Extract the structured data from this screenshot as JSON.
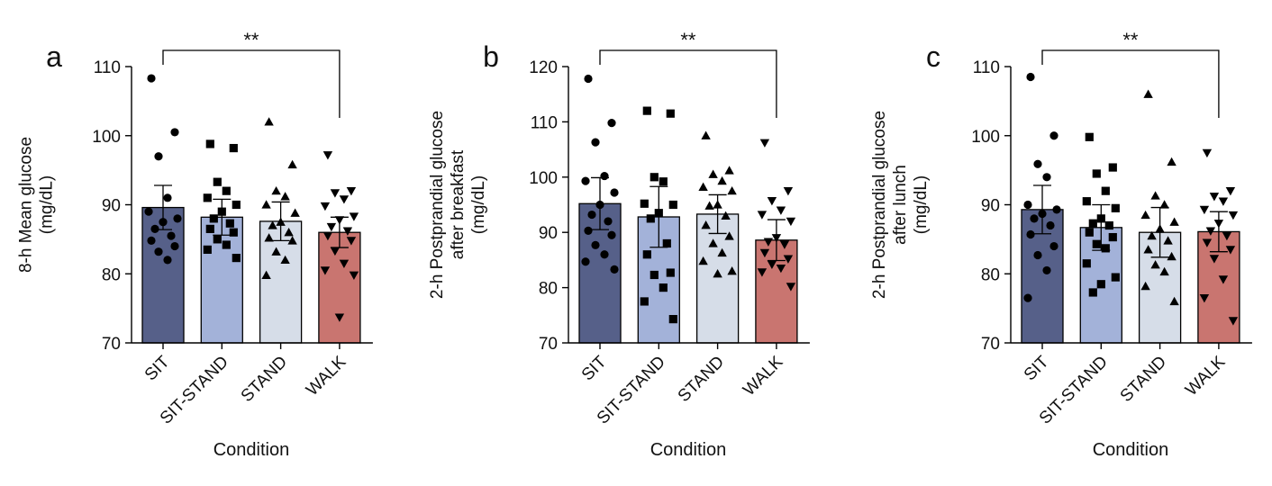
{
  "figure": {
    "xlabel": "Condition",
    "categories": [
      "SIT",
      "SIT-STAND",
      "STAND",
      "WALK"
    ],
    "colors": [
      "#566089",
      "#a3b2d9",
      "#d6dde8",
      "#c97570"
    ],
    "marker_shapes": [
      "circle",
      "square",
      "triangle-up",
      "triangle-down"
    ]
  },
  "chart_data": [
    {
      "type": "bar",
      "panel_letter": "a",
      "ylabel_lines": [
        "8-h Mean glucose",
        "(mg/dL)"
      ],
      "xlabel": "Condition",
      "categories": [
        "SIT",
        "SIT-STAND",
        "STAND",
        "WALK"
      ],
      "values": [
        89.6,
        88.2,
        87.6,
        86.0
      ],
      "error": [
        3.2,
        2.6,
        2.8,
        2.2
      ],
      "ylim": [
        70,
        110
      ],
      "yticks": [
        70,
        80,
        90,
        100,
        110
      ],
      "significance": {
        "label": "**",
        "from": "SIT",
        "to": "WALK"
      },
      "points": [
        [
          108.3,
          100.5,
          97.0,
          91.0,
          89.0,
          88.0,
          87.5,
          86.5,
          85.5,
          84.8,
          84.0,
          83.2,
          82.0
        ],
        [
          98.8,
          98.2,
          93.3,
          92.0,
          91.0,
          90.0,
          89.0,
          88.0,
          87.3,
          86.5,
          86.0,
          85.0,
          84.2,
          83.5,
          82.3
        ],
        [
          102.0,
          95.8,
          92.0,
          91.2,
          90.0,
          88.8,
          87.5,
          87.0,
          86.0,
          85.2,
          84.8,
          83.2,
          82.0,
          79.8
        ],
        [
          97.2,
          92.0,
          91.7,
          90.8,
          89.8,
          88.3,
          87.8,
          86.8,
          86.2,
          85.5,
          84.8,
          83.3,
          81.5,
          80.5,
          79.8,
          73.7
        ]
      ]
    },
    {
      "type": "bar",
      "panel_letter": "b",
      "ylabel_lines": [
        "2-h Postprandial glucose",
        "after breakfast",
        "(mg/dL)"
      ],
      "xlabel": "Condition",
      "categories": [
        "SIT",
        "SIT-STAND",
        "STAND",
        "WALK"
      ],
      "values": [
        95.2,
        92.8,
        93.3,
        88.6
      ],
      "error": [
        4.7,
        5.5,
        3.5,
        3.7
      ],
      "ylim": [
        70,
        120
      ],
      "yticks": [
        70,
        80,
        90,
        100,
        110,
        120
      ],
      "significance": {
        "label": "**",
        "from": "SIT",
        "to": "WALK"
      },
      "points": [
        [
          117.8,
          109.8,
          106.3,
          100.2,
          99.3,
          97.2,
          95.0,
          93.2,
          92.0,
          90.3,
          89.5,
          87.7,
          86.0,
          84.7,
          83.3
        ],
        [
          112.0,
          111.5,
          100.0,
          99.2,
          95.2,
          95.0,
          93.5,
          92.5,
          88.0,
          86.0,
          82.7,
          82.3,
          80.0,
          77.5,
          74.3
        ],
        [
          107.5,
          101.2,
          100.5,
          99.3,
          98.2,
          97.5,
          95.0,
          94.8,
          93.0,
          91.3,
          89.3,
          88.0,
          86.3,
          84.8,
          83.0,
          82.5
        ],
        [
          106.2,
          97.5,
          95.7,
          94.0,
          93.2,
          92.0,
          89.0,
          88.3,
          87.8,
          86.3,
          85.2,
          84.2,
          83.5,
          82.8,
          80.2
        ]
      ]
    },
    {
      "type": "bar",
      "panel_letter": "c",
      "ylabel_lines": [
        "2-h Postprandial glucose",
        "after lunch",
        "(mg/dL)"
      ],
      "xlabel": "Condition",
      "categories": [
        "SIT",
        "SIT-STAND",
        "STAND",
        "WALK"
      ],
      "values": [
        89.3,
        86.7,
        86.0,
        86.1
      ],
      "error": [
        3.5,
        3.3,
        3.6,
        2.9
      ],
      "ylim": [
        70,
        110
      ],
      "yticks": [
        70,
        80,
        90,
        100,
        110
      ],
      "significance": {
        "label": "**",
        "from": "SIT",
        "to": "WALK"
      },
      "points": [
        [
          108.5,
          100.0,
          95.9,
          94.0,
          90.0,
          89.3,
          88.7,
          88.0,
          87.0,
          85.7,
          84.0,
          82.7,
          80.5,
          76.5
        ],
        [
          99.8,
          95.4,
          94.5,
          92.0,
          90.5,
          89.5,
          88.0,
          87.3,
          87.0,
          86.0,
          85.3,
          84.3,
          83.7,
          81.5,
          79.5,
          78.5,
          77.3
        ],
        [
          106.0,
          96.2,
          91.3,
          90.0,
          88.5,
          87.5,
          86.5,
          85.5,
          84.8,
          83.5,
          82.5,
          81.3,
          80.3,
          78.2,
          76.0
        ],
        [
          97.5,
          92.0,
          91.2,
          90.5,
          89.3,
          88.5,
          87.3,
          86.2,
          85.5,
          84.5,
          83.5,
          82.2,
          79.2,
          76.5,
          73.2
        ]
      ]
    }
  ]
}
